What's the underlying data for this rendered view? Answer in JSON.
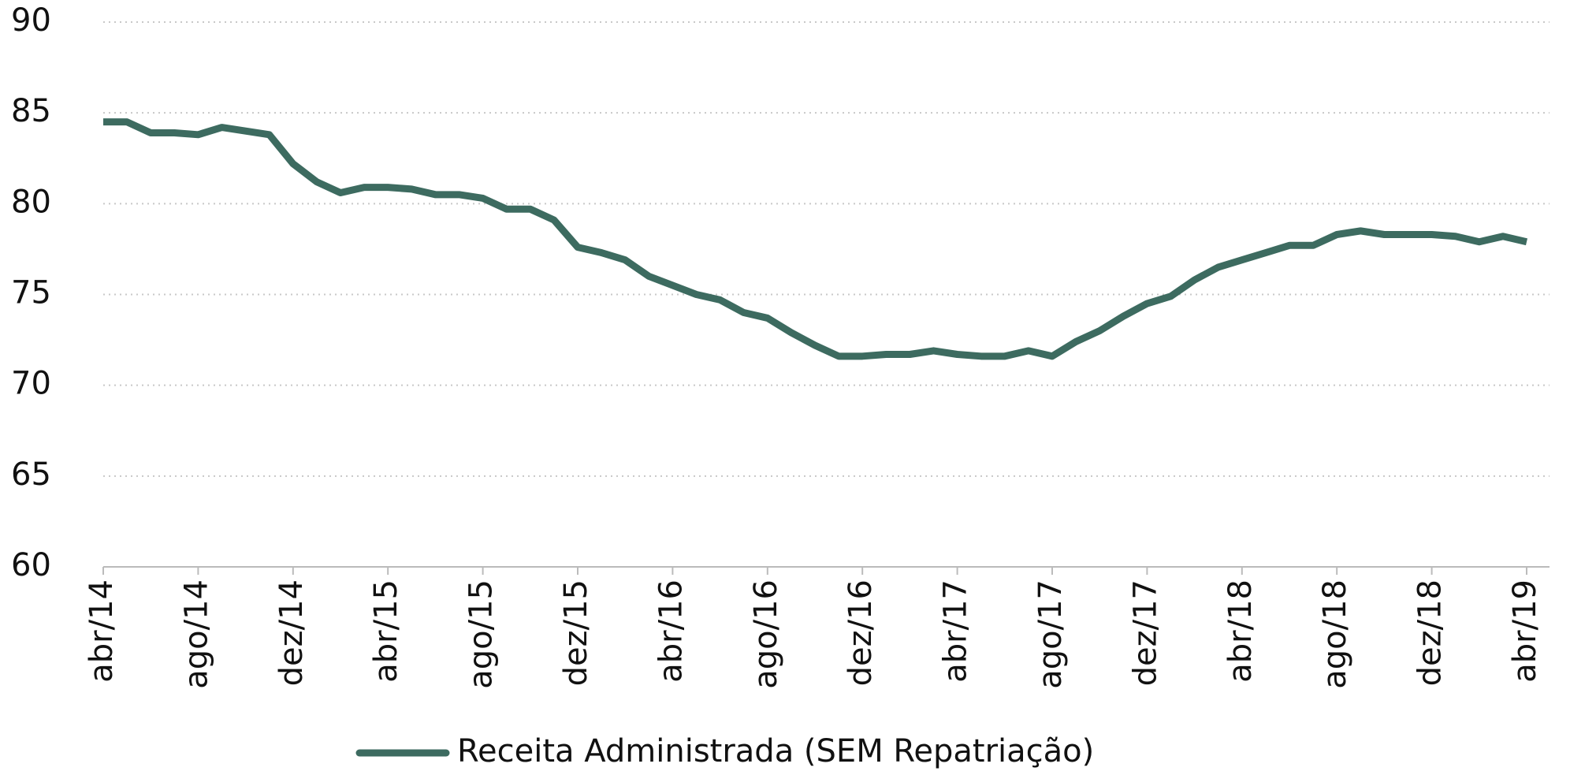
{
  "chart_data": {
    "type": "line",
    "categories": [
      "abr/14",
      null,
      null,
      null,
      "ago/14",
      null,
      null,
      null,
      "dez/14",
      null,
      null,
      null,
      "abr/15",
      null,
      null,
      null,
      "ago/15",
      null,
      null,
      null,
      "dez/15",
      null,
      null,
      null,
      "abr/16",
      null,
      null,
      null,
      "ago/16",
      null,
      null,
      null,
      "dez/16",
      null,
      null,
      null,
      "abr/17",
      null,
      null,
      null,
      "ago/17",
      null,
      null,
      null,
      "dez/17",
      null,
      null,
      null,
      "abr/18",
      null,
      null,
      null,
      "ago/18",
      null,
      null,
      null,
      "dez/18",
      null,
      null,
      null,
      "abr/19"
    ],
    "series": [
      {
        "name": "Receita Administrada (SEM Repatriação)",
        "color": "#3d6b60",
        "values": [
          84.5,
          84.5,
          83.9,
          83.9,
          83.8,
          84.2,
          84.0,
          83.8,
          82.2,
          81.2,
          80.6,
          80.9,
          80.9,
          80.8,
          80.5,
          80.5,
          80.3,
          79.7,
          79.7,
          79.1,
          77.6,
          77.3,
          76.9,
          76.0,
          75.5,
          75.0,
          74.7,
          74.0,
          73.7,
          72.9,
          72.2,
          71.6,
          71.6,
          71.7,
          71.7,
          71.9,
          71.7,
          71.6,
          71.6,
          71.9,
          71.6,
          72.4,
          73.0,
          73.8,
          74.5,
          74.9,
          75.8,
          76.5,
          76.9,
          77.3,
          77.7,
          77.7,
          78.3,
          78.5,
          78.3,
          78.3,
          78.3,
          78.2,
          77.9,
          78.2,
          77.9
        ]
      }
    ],
    "ylim": [
      60,
      90
    ],
    "yticks": [
      60,
      65,
      70,
      75,
      80,
      85,
      90
    ],
    "grid": true,
    "legend": "bottom"
  }
}
